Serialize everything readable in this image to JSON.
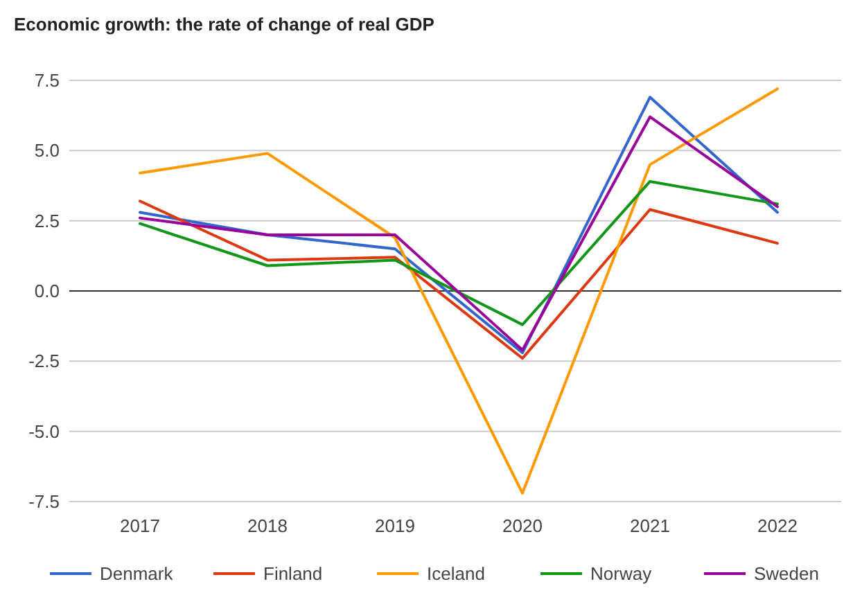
{
  "chart_data": {
    "type": "line",
    "title": "Economic growth: the rate of change of real GDP",
    "categories": [
      "2017",
      "2018",
      "2019",
      "2020",
      "2021",
      "2022"
    ],
    "series": [
      {
        "name": "Denmark",
        "color": "#3366cc",
        "values": [
          2.8,
          2.0,
          1.5,
          -2.2,
          6.9,
          2.8
        ]
      },
      {
        "name": "Finland",
        "color": "#dc3912",
        "values": [
          3.2,
          1.1,
          1.2,
          -2.4,
          2.9,
          1.7
        ]
      },
      {
        "name": "Iceland",
        "color": "#ff9900",
        "values": [
          4.2,
          4.9,
          1.9,
          -7.2,
          4.5,
          7.2
        ]
      },
      {
        "name": "Norway",
        "color": "#109618",
        "values": [
          2.4,
          0.9,
          1.1,
          -1.2,
          3.9,
          3.1
        ]
      },
      {
        "name": "Sweden",
        "color": "#990099",
        "values": [
          2.6,
          2.0,
          2.0,
          -2.1,
          6.2,
          3.0
        ]
      }
    ],
    "ylim": [
      -7.5,
      7.5
    ],
    "yticks": [
      {
        "value": -7.5,
        "label": "-7.5"
      },
      {
        "value": -5,
        "label": "-5.0"
      },
      {
        "value": -2.5,
        "label": "-2.5"
      },
      {
        "value": 0,
        "label": "0.0"
      },
      {
        "value": 2.5,
        "label": "2.5"
      },
      {
        "value": 5,
        "label": "5.0"
      },
      {
        "value": 7.5,
        "label": "7.5"
      }
    ],
    "grid": true,
    "legend": "bottom",
    "marker": "none",
    "line_style": "solid"
  }
}
